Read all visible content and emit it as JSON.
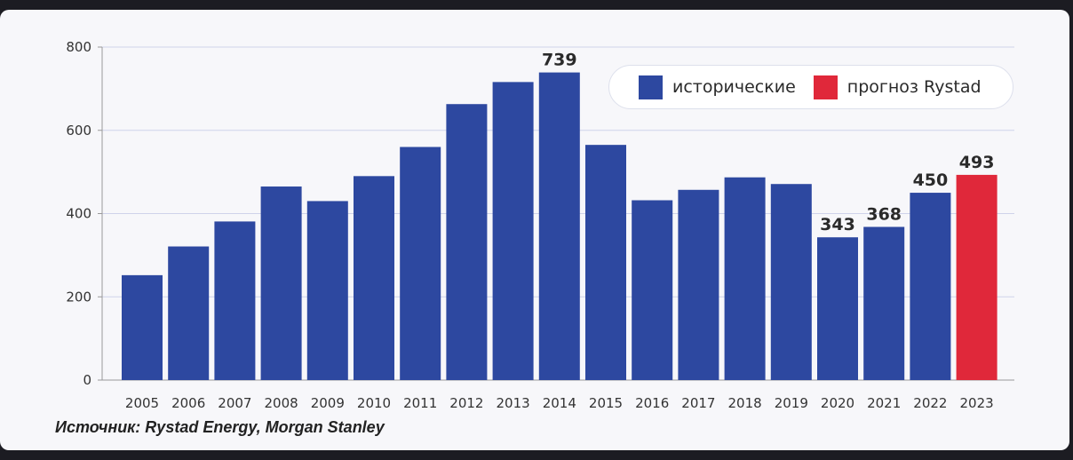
{
  "chart_data": {
    "type": "bar",
    "categories": [
      "2005",
      "2006",
      "2007",
      "2008",
      "2009",
      "2010",
      "2011",
      "2012",
      "2013",
      "2014",
      "2015",
      "2016",
      "2017",
      "2018",
      "2019",
      "2020",
      "2021",
      "2022",
      "2023"
    ],
    "values": [
      252,
      321,
      381,
      465,
      430,
      490,
      560,
      663,
      716,
      739,
      565,
      432,
      457,
      487,
      471,
      343,
      368,
      450,
      493
    ],
    "labeled_values": {
      "2014": "739",
      "2020": "343",
      "2021": "368",
      "2022": "450",
      "2023": "493"
    },
    "yticks": [
      0,
      200,
      400,
      600,
      800
    ],
    "ylim": [
      0,
      800
    ],
    "grid": true,
    "series": [
      {
        "name": "исторические",
        "color": "#2d48a0"
      },
      {
        "name": "прогноз Rystad",
        "color": "#e0283a"
      }
    ],
    "forecast_categories": [
      "2023"
    ],
    "legend_position": "top-right"
  },
  "source": "Источник: Rystad Energy, Morgan Stanley"
}
